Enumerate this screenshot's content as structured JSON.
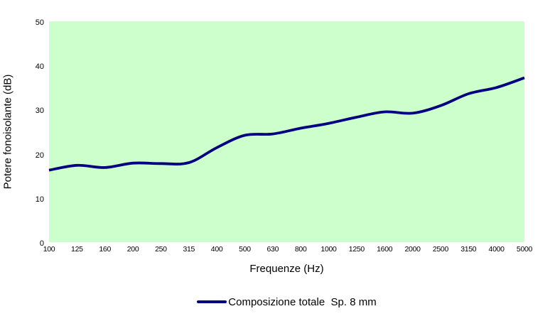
{
  "colors": {
    "line": "#000080",
    "plot_background": "#ccffcc",
    "page_background": "#ffffff",
    "text": "#000000"
  },
  "legend": {
    "label": "Composizione totale  Sp. 8 mm"
  },
  "chart_data": {
    "type": "line",
    "title": "",
    "xlabel": "Frequenze (Hz)",
    "ylabel": "Potere fonoisolante (dB)",
    "categories": [
      "100",
      "125",
      "160",
      "200",
      "250",
      "315",
      "400",
      "500",
      "630",
      "800",
      "1000",
      "1250",
      "1600",
      "2000",
      "2500",
      "3150",
      "4000",
      "5000"
    ],
    "series": [
      {
        "name": "Composizione totale  Sp. 8 mm",
        "values": [
          16.3,
          17.4,
          16.9,
          17.9,
          17.8,
          18.0,
          21.4,
          24.2,
          24.5,
          25.8,
          26.9,
          28.3,
          29.5,
          29.2,
          30.9,
          33.6,
          35.0,
          37.2
        ],
        "color": "#000080"
      }
    ],
    "ylim": [
      0,
      50
    ],
    "y_ticks": [
      0,
      10,
      20,
      30,
      40,
      50
    ],
    "grid": false,
    "smooth": true,
    "legend_position": "bottom",
    "plot_background": "#ccffcc"
  }
}
